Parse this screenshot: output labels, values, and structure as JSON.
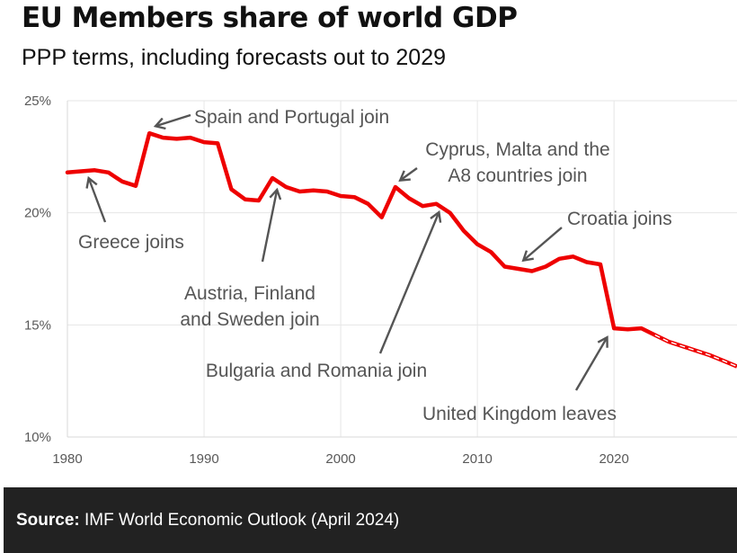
{
  "header": {
    "title": "EU Members share of world GDP",
    "subtitle": "PPP terms, including forecasts out to 2029"
  },
  "footer": {
    "source_label": "Source:",
    "source_text": "IMF World Economic Outlook (April 2024)"
  },
  "colors": {
    "line": "#ee0000",
    "annotation": "#555555",
    "grid": "#e6e6e6",
    "axis_text": "#595959"
  },
  "chart_data": {
    "type": "line",
    "title": "EU Members share of world GDP",
    "subtitle": "PPP terms, including forecasts out to 2029",
    "xlabel": "",
    "ylabel": "",
    "xlim": [
      1980,
      2029
    ],
    "ylim": [
      10,
      25
    ],
    "grid": true,
    "xticks": [
      1980,
      1990,
      2000,
      2010,
      2020
    ],
    "yticks": [
      {
        "value": 10,
        "label": "10%"
      },
      {
        "value": 15,
        "label": "15%"
      },
      {
        "value": 20,
        "label": "20%"
      },
      {
        "value": 25,
        "label": "25%"
      }
    ],
    "series": [
      {
        "name": "EU members share of world GDP (actual)",
        "style": "solid",
        "x": [
          1980,
          1981,
          1982,
          1983,
          1984,
          1985,
          1986,
          1987,
          1988,
          1989,
          1990,
          1991,
          1992,
          1993,
          1994,
          1995,
          1996,
          1997,
          1998,
          1999,
          2000,
          2001,
          2002,
          2003,
          2004,
          2005,
          2006,
          2007,
          2008,
          2009,
          2010,
          2011,
          2012,
          2013,
          2014,
          2015,
          2016,
          2017,
          2018,
          2019,
          2020,
          2021,
          2022,
          2023
        ],
        "values": [
          21.8,
          21.85,
          21.9,
          21.8,
          21.4,
          21.2,
          23.55,
          23.35,
          23.3,
          23.35,
          23.15,
          23.1,
          21.05,
          20.6,
          20.55,
          21.55,
          21.15,
          20.95,
          21.0,
          20.95,
          20.75,
          20.7,
          20.4,
          19.8,
          21.15,
          20.65,
          20.3,
          20.4,
          20.0,
          19.2,
          18.6,
          18.25,
          17.6,
          17.5,
          17.4,
          17.6,
          17.95,
          18.05,
          17.8,
          17.7,
          14.85,
          14.8,
          14.85,
          14.55
        ]
      },
      {
        "name": "EU members share of world GDP (forecast)",
        "style": "dashed",
        "x": [
          2023,
          2024,
          2025,
          2026,
          2027,
          2028,
          2029
        ],
        "values": [
          14.55,
          14.25,
          14.05,
          13.85,
          13.65,
          13.4,
          13.15
        ]
      }
    ],
    "annotations": [
      {
        "text": [
          "Spain and Portugal join"
        ],
        "year": 1986,
        "value": 23.55
      },
      {
        "text": [
          "Greece joins"
        ],
        "year": 1981.6,
        "value": 21.5
      },
      {
        "text": [
          "Austria, Finland",
          "and Sweden join"
        ],
        "year": 1995.3,
        "value": 21.0
      },
      {
        "text": [
          "Cyprus, Malta and the",
          "A8 countries join"
        ],
        "year": 2004.5,
        "value": 21.35
      },
      {
        "text": [
          "Bulgaria and Romania join"
        ],
        "year": 2007.1,
        "value": 20.0
      },
      {
        "text": [
          "Croatia joins"
        ],
        "year": 2013.3,
        "value": 17.7
      },
      {
        "text": [
          "United Kingdom leaves"
        ],
        "year": 2019.3,
        "value": 14.6
      }
    ]
  }
}
